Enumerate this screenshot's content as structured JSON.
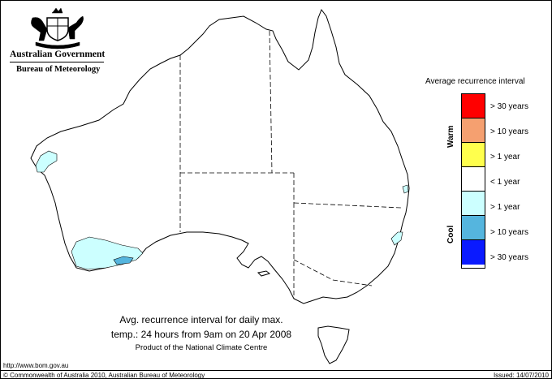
{
  "header": {
    "government": "Australian Government",
    "bureau": "Bureau of Meteorology"
  },
  "map": {
    "anomaly_regions": [
      {
        "area": "Pilbara / Gascoyne coast, WA",
        "category": "cool > 1 year"
      },
      {
        "area": "Southern WA (Great Southern / Esperance)",
        "category": "cool > 1 year"
      },
      {
        "area": "Southern WA coast strip",
        "category": "cool > 10 years"
      },
      {
        "area": "South-east Queensland coast",
        "category": "cool > 1 year"
      },
      {
        "area": "Northern NSW coast",
        "category": "cool > 1 year"
      }
    ]
  },
  "legend": {
    "title": "Average recurrence interval",
    "warm_label": "Warm",
    "cool_label": "Cool",
    "items": [
      {
        "label": "> 30 years",
        "color": "#ff0000"
      },
      {
        "label": "> 10 years",
        "color": "#f5a070"
      },
      {
        "label": "> 1 year",
        "color": "#ffff4d"
      },
      {
        "label": "< 1 year",
        "color": "#ffffff"
      },
      {
        "label": "> 1 year",
        "color": "#ccffff"
      },
      {
        "label": "> 10 years",
        "color": "#55b5de"
      },
      {
        "label": "> 30 years",
        "color": "#0a1aff"
      }
    ]
  },
  "caption": {
    "line1": "Avg. recurrence interval for daily max.",
    "line2": "temp.: 24 hours from 9am on 20 Apr 2008",
    "line3": "Product of the National Climate Centre"
  },
  "footer": {
    "url": "http://www.bom.gov.au",
    "copyright": "© Commonwealth of Australia 2010, Australian Bureau of Meteorology",
    "issued": "Issued: 14/07/2010"
  }
}
